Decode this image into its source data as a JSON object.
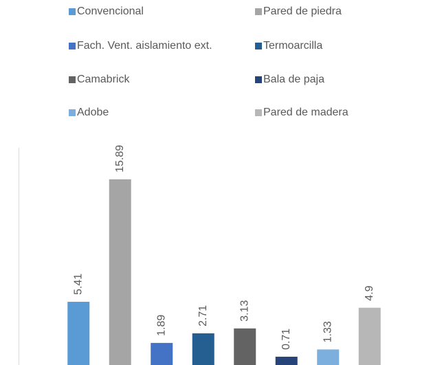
{
  "chart_data": {
    "type": "bar",
    "categories": [
      "Convencional",
      "Pared de piedra",
      "Fach. Vent. aislamiento ext.",
      "Termoarcilla",
      "Camabrick",
      "Bala de paja",
      "Adobe",
      "Pared de madera"
    ],
    "values": [
      5.41,
      15.89,
      1.89,
      2.71,
      3.13,
      0.71,
      1.33,
      4.9
    ],
    "colors": [
      "#5b9bd5",
      "#a5a5a5",
      "#4472c4",
      "#255e91",
      "#636363",
      "#264478",
      "#7cafdd",
      "#b7b7b7"
    ],
    "ylim": [
      0,
      18
    ]
  }
}
